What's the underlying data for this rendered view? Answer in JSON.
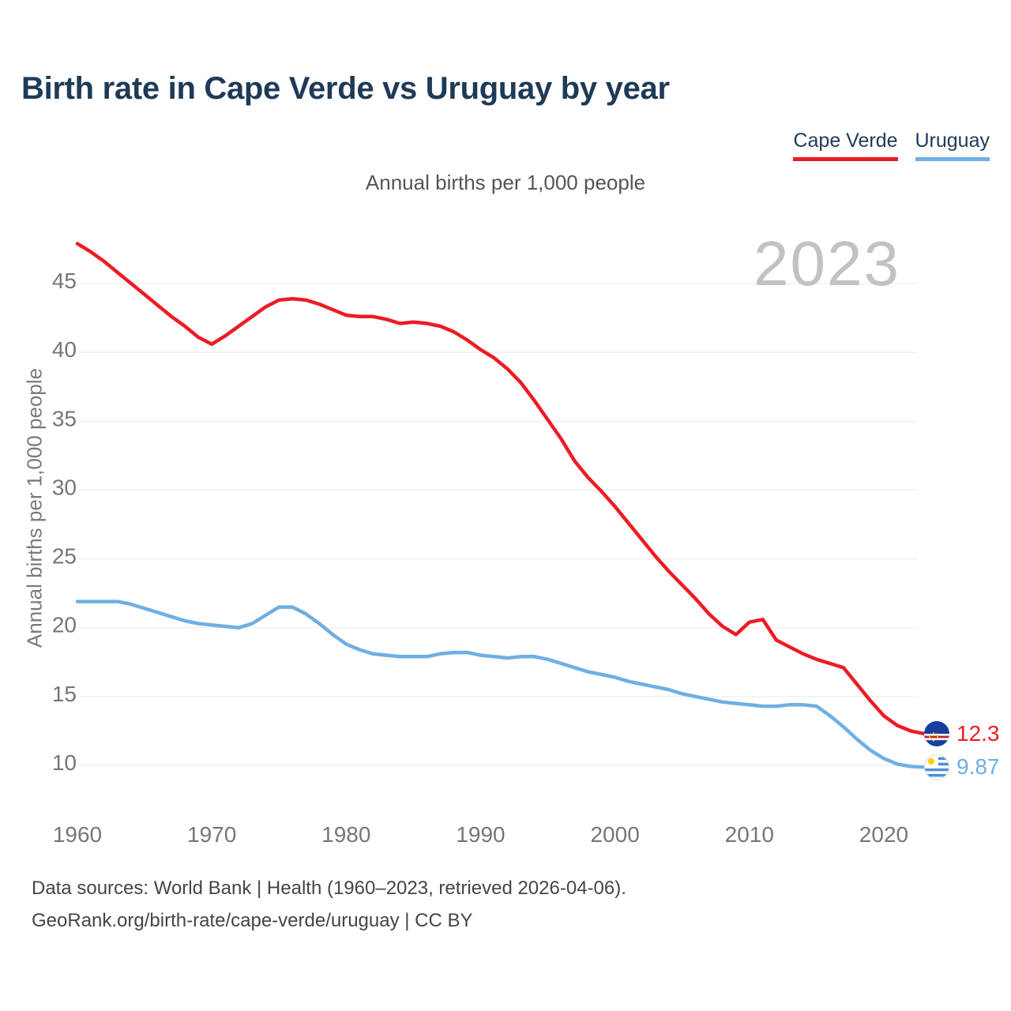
{
  "title": "Birth rate in Cape Verde vs Uruguay by year",
  "subtitle": "Annual births per 1,000 people",
  "y_axis_title": "Annual births per 1,000 people",
  "watermark_year": "2023",
  "legend": {
    "items": [
      {
        "label": "Cape Verde",
        "color": "#ed1c24"
      },
      {
        "label": "Uruguay",
        "color": "#6fafe3"
      }
    ]
  },
  "footer": {
    "line1": "Data sources: World Bank | Health (1960–2023, retrieved 2026-04-06).",
    "line2": "GeoRank.org/birth-rate/cape-verde/uruguay | CC BY"
  },
  "colors": {
    "title_text": "#1e3a57",
    "subtitle_text": "#555555",
    "axis_text": "#767676",
    "grid": "#eaeaea",
    "watermark": "#c2c2c2",
    "cape_verde_red": "#ed1c24",
    "uruguay_blue": "#6fafe3"
  },
  "chart_data": {
    "type": "line",
    "title": "Birth rate in Cape Verde vs Uruguay by year",
    "xlabel": "",
    "ylabel": "Annual births per 1,000 people",
    "grid": true,
    "legend_position": "top-right",
    "x_ticks": [
      1960,
      1970,
      1980,
      1990,
      2000,
      2010,
      2020
    ],
    "y_ticks": [
      10,
      15,
      20,
      25,
      30,
      35,
      40,
      45
    ],
    "xlim": [
      1958.5,
      2026.5
    ],
    "ylim": [
      8.5,
      48.5
    ],
    "x": [
      1960,
      1961,
      1962,
      1963,
      1964,
      1965,
      1966,
      1967,
      1968,
      1969,
      1970,
      1971,
      1972,
      1973,
      1974,
      1975,
      1976,
      1977,
      1978,
      1979,
      1980,
      1981,
      1982,
      1983,
      1984,
      1985,
      1986,
      1987,
      1988,
      1989,
      1990,
      1991,
      1992,
      1993,
      1994,
      1995,
      1996,
      1997,
      1998,
      1999,
      2000,
      2001,
      2002,
      2003,
      2004,
      2005,
      2006,
      2007,
      2008,
      2009,
      2010,
      2011,
      2012,
      2013,
      2014,
      2015,
      2016,
      2017,
      2018,
      2019,
      2020,
      2021,
      2022,
      2023
    ],
    "series": [
      {
        "name": "Cape Verde",
        "color": "#ed1c24",
        "end_label": "12.3",
        "values": [
          47.9,
          47.3,
          46.6,
          45.8,
          45.0,
          44.2,
          43.4,
          42.6,
          41.9,
          41.1,
          40.6,
          41.2,
          41.9,
          42.6,
          43.3,
          43.8,
          43.9,
          43.8,
          43.5,
          43.1,
          42.7,
          42.6,
          42.6,
          42.4,
          42.1,
          42.2,
          42.1,
          41.9,
          41.5,
          40.9,
          40.2,
          39.6,
          38.8,
          37.8,
          36.5,
          35.1,
          33.7,
          32.1,
          30.9,
          29.9,
          28.8,
          27.6,
          26.4,
          25.2,
          24.1,
          23.1,
          22.1,
          21.0,
          20.1,
          19.5,
          20.4,
          20.6,
          19.1,
          18.6,
          18.1,
          17.7,
          17.4,
          17.1,
          15.9,
          14.7,
          13.6,
          12.9,
          12.5,
          12.3
        ]
      },
      {
        "name": "Uruguay",
        "color": "#6fafe3",
        "end_label": "9.87",
        "values": [
          21.9,
          21.9,
          21.9,
          21.9,
          21.7,
          21.4,
          21.1,
          20.8,
          20.5,
          20.3,
          20.2,
          20.1,
          20.0,
          20.3,
          20.9,
          21.5,
          21.5,
          21.0,
          20.3,
          19.5,
          18.8,
          18.4,
          18.1,
          18.0,
          17.9,
          17.9,
          17.9,
          18.1,
          18.2,
          18.2,
          18.0,
          17.9,
          17.8,
          17.9,
          17.9,
          17.7,
          17.4,
          17.1,
          16.8,
          16.6,
          16.4,
          16.1,
          15.9,
          15.7,
          15.5,
          15.2,
          15.0,
          14.8,
          14.6,
          14.5,
          14.4,
          14.3,
          14.3,
          14.4,
          14.4,
          14.3,
          13.6,
          12.8,
          11.9,
          11.1,
          10.5,
          10.1,
          9.92,
          9.87
        ]
      }
    ]
  }
}
